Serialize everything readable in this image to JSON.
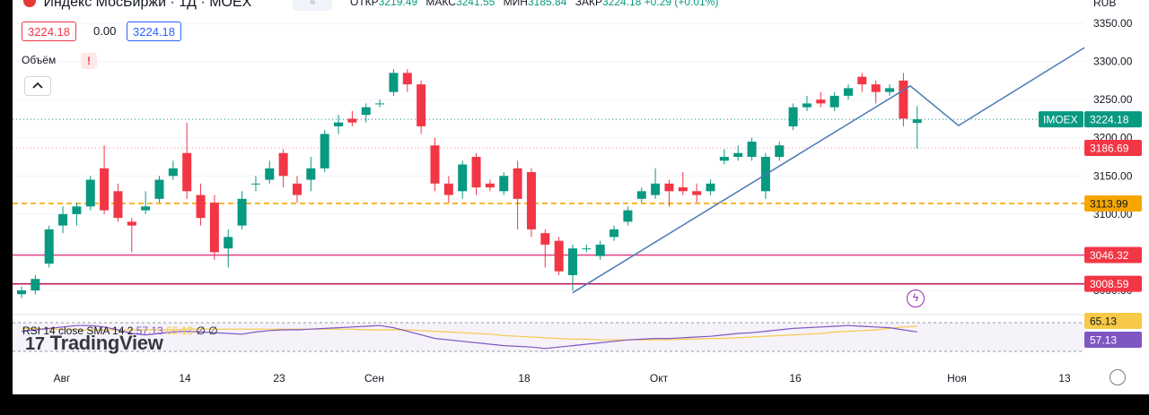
{
  "header": {
    "title": "Индекс МосБиржи · 1Д · MOEX",
    "ohlc_parts": [
      {
        "label": "ОТКР",
        "value": "3219.49"
      },
      {
        "label": "МАКС",
        "value": "3241.55"
      },
      {
        "label": "МИН",
        "value": "3185.84"
      },
      {
        "label": "ЗАКР",
        "value": "3224.18 +0.29 (+0.01%)"
      }
    ],
    "bid": "3224.18",
    "spread": "0.00",
    "ask": "3224.18"
  },
  "currency": "RUB",
  "volume_label": "Объём",
  "volume_warning": "!",
  "rsi_legend": {
    "name": "RSI 14 close SMA 14 2",
    "rsi_value": "57.13",
    "sma_value": "65.13",
    "extra": "∅ ∅"
  },
  "watermark": "TradingView",
  "price_labels": [
    {
      "name": "imoex-symbol",
      "text": "IMOEX",
      "value": 3224.18,
      "display": "3224.18",
      "color": "#089981"
    },
    {
      "name": "level-3186",
      "value": 3186.69,
      "display": "3186.69",
      "color": "#f23645"
    },
    {
      "name": "level-3113",
      "value": 3113.99,
      "display": "3113.99",
      "color": "#f7a600"
    },
    {
      "name": "level-3046",
      "value": 3046.32,
      "display": "3046.32",
      "color": "#f23645"
    },
    {
      "name": "level-3008",
      "value": 3008.59,
      "display": "3008.59",
      "color": "#f23645"
    }
  ],
  "rsi_labels": [
    {
      "value": 65.13,
      "display": "65.13",
      "color": "#f7c948",
      "text_color": "#131722"
    },
    {
      "value": 57.13,
      "display": "57.13",
      "color": "#7e57c2",
      "text_color": "#ffffff"
    }
  ],
  "chart_data": {
    "type": "candlestick",
    "symbol": "IMOEX",
    "y_ticks": [
      3000,
      3050,
      3100,
      3150,
      3200,
      3250,
      3300,
      3350
    ],
    "y_tick_labels": [
      "3000.00",
      "3050.00",
      "3100.00",
      "3150.00",
      "3200.00",
      "3250.00",
      "3300.00",
      "3350.00"
    ],
    "ylim": [
      2970,
      3375
    ],
    "x_labels": [
      "Авг",
      "14",
      "23",
      "Сен",
      "18",
      "Окт",
      "16",
      "Ноя",
      "13"
    ],
    "horizontal_levels": [
      {
        "value": 3113.99,
        "color": "#f7a600",
        "style": "dashed"
      },
      {
        "value": 3046.32,
        "color": "#e0498a",
        "style": "solid"
      },
      {
        "value": 3008.59,
        "color": "#c2185b",
        "style": "solid"
      }
    ],
    "candles": [
      [
        2995,
        3000,
        2990,
        3005
      ],
      [
        3000,
        3015,
        2995,
        3020
      ],
      [
        3035,
        3080,
        3030,
        3085
      ],
      [
        3085,
        3100,
        3075,
        3110
      ],
      [
        3100,
        3110,
        3085,
        3115
      ],
      [
        3110,
        3145,
        3105,
        3150
      ],
      [
        3160,
        3105,
        3100,
        3190
      ],
      [
        3130,
        3095,
        3090,
        3140
      ],
      [
        3090,
        3085,
        3050,
        3095
      ],
      [
        3105,
        3110,
        3100,
        3130
      ],
      [
        3120,
        3145,
        3115,
        3150
      ],
      [
        3150,
        3160,
        3145,
        3170
      ],
      [
        3180,
        3130,
        3120,
        3220
      ],
      [
        3125,
        3095,
        3085,
        3140
      ],
      [
        3115,
        3050,
        3040,
        3125
      ],
      [
        3055,
        3070,
        3030,
        3080
      ],
      [
        3085,
        3120,
        3080,
        3130
      ],
      [
        3140,
        3140,
        3130,
        3150
      ],
      [
        3145,
        3160,
        3140,
        3170
      ],
      [
        3180,
        3150,
        3135,
        3185
      ],
      [
        3140,
        3125,
        3115,
        3150
      ],
      [
        3145,
        3160,
        3130,
        3175
      ],
      [
        3160,
        3205,
        3155,
        3210
      ],
      [
        3215,
        3220,
        3205,
        3230
      ],
      [
        3225,
        3220,
        3215,
        3235
      ],
      [
        3230,
        3240,
        3220,
        3245
      ],
      [
        3245,
        3245,
        3240,
        3250
      ],
      [
        3260,
        3285,
        3255,
        3290
      ],
      [
        3285,
        3270,
        3260,
        3290
      ],
      [
        3270,
        3215,
        3205,
        3275
      ],
      [
        3190,
        3140,
        3130,
        3200
      ],
      [
        3140,
        3125,
        3115,
        3150
      ],
      [
        3130,
        3165,
        3120,
        3170
      ],
      [
        3175,
        3135,
        3125,
        3180
      ],
      [
        3140,
        3135,
        3130,
        3145
      ],
      [
        3130,
        3150,
        3125,
        3155
      ],
      [
        3160,
        3120,
        3080,
        3170
      ],
      [
        3155,
        3080,
        3070,
        3160
      ],
      [
        3075,
        3060,
        3030,
        3080
      ],
      [
        3065,
        3025,
        3020,
        3070
      ],
      [
        3020,
        3055,
        3000,
        3060
      ],
      [
        3055,
        3055,
        3050,
        3060
      ],
      [
        3045,
        3060,
        3040,
        3065
      ],
      [
        3070,
        3080,
        3065,
        3085
      ],
      [
        3090,
        3105,
        3085,
        3110
      ],
      [
        3120,
        3130,
        3115,
        3135
      ],
      [
        3125,
        3140,
        3120,
        3160
      ],
      [
        3140,
        3130,
        3110,
        3145
      ],
      [
        3135,
        3130,
        3125,
        3155
      ],
      [
        3130,
        3125,
        3115,
        3140
      ],
      [
        3130,
        3140,
        3125,
        3145
      ],
      [
        3170,
        3175,
        3165,
        3185
      ],
      [
        3175,
        3180,
        3170,
        3190
      ],
      [
        3175,
        3195,
        3170,
        3200
      ],
      [
        3130,
        3175,
        3120,
        3180
      ],
      [
        3175,
        3190,
        3170,
        3195
      ],
      [
        3215,
        3240,
        3210,
        3245
      ],
      [
        3240,
        3245,
        3235,
        3255
      ],
      [
        3250,
        3245,
        3240,
        3260
      ],
      [
        3240,
        3255,
        3235,
        3260
      ],
      [
        3255,
        3265,
        3250,
        3270
      ],
      [
        3280,
        3270,
        3260,
        3285
      ],
      [
        3270,
        3260,
        3245,
        3275
      ],
      [
        3260,
        3265,
        3255,
        3270
      ],
      [
        3275,
        3225,
        3215,
        3285
      ],
      [
        3219.49,
        3224.18,
        3185.84,
        3241.55
      ]
    ],
    "trendlines": [
      {
        "points": [
          [
            40,
            2997
          ],
          [
            64.5,
            3268
          ],
          [
            68,
            3216
          ],
          [
            80,
            3350
          ]
        ],
        "color": "#4a7bb7"
      }
    ],
    "rsi": {
      "ylim": [
        20,
        80
      ],
      "rsi_values": [
        58,
        60,
        62,
        64,
        66,
        66,
        64,
        60,
        55,
        53,
        55,
        57,
        58,
        57,
        56,
        55,
        54,
        57,
        59,
        60,
        60,
        61,
        62,
        63,
        64,
        65,
        66,
        63,
        58,
        53,
        48,
        46,
        44,
        42,
        40,
        38,
        37,
        36,
        34,
        36,
        38,
        40,
        42,
        44,
        46,
        47,
        48,
        48,
        49,
        50,
        51,
        53,
        55,
        56,
        58,
        60,
        62,
        63,
        64,
        65,
        66,
        65,
        64,
        63,
        60,
        57.13
      ],
      "sma_values": [
        62,
        62,
        61,
        61,
        60,
        60,
        60,
        60,
        60,
        60,
        60,
        60,
        61,
        61,
        61,
        61,
        61,
        61,
        61,
        61,
        61,
        61,
        61,
        61,
        61,
        60,
        60,
        60,
        60,
        59,
        58,
        57,
        56,
        55,
        54,
        52,
        51,
        50,
        49,
        48,
        47,
        47,
        46,
        46,
        46,
        46,
        46,
        46,
        47,
        47,
        48,
        48,
        49,
        50,
        51,
        52,
        53,
        54,
        55,
        57,
        58,
        59,
        60,
        62,
        64,
        65.13
      ]
    }
  }
}
